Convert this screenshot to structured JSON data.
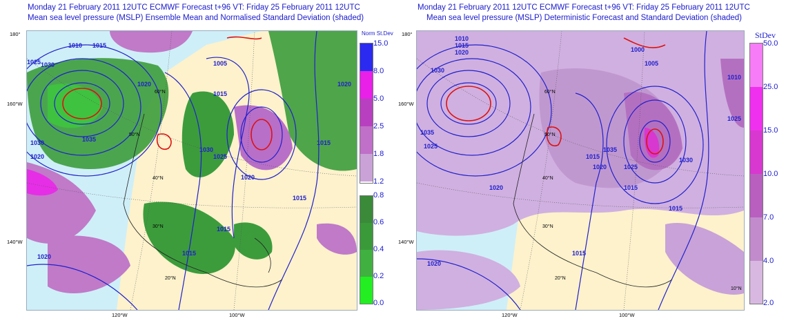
{
  "left": {
    "title_line1": "Monday 21 February 2011 12UTC ECMWF Forecast t+96  VT: Friday 25 February 2011 12UTC",
    "title_line2": "Mean sea level pressure (MSLP) Ensemble Mean and Normalised Standard Deviation (shaded)",
    "colorbar_title": "Norm St.Dev",
    "colorbar_colors_top": [
      "#2a2af0",
      "#e820e8",
      "#b840c0",
      "#c070c8",
      "#caa2d8",
      "#ffffff"
    ],
    "colorbar_colors_bottom": [
      "#3a8a3a",
      "#3a9a3a",
      "#40b040",
      "#30cc30",
      "#22ee22"
    ],
    "colorbar_labels": [
      "15.0",
      "8.0",
      "5.0",
      "2.5",
      "1.8",
      "1.2",
      "0.8",
      "0.6",
      "0.4",
      "0.2",
      "0.0"
    ],
    "isobar_labels": [
      "1010",
      "1015",
      "1025",
      "1030",
      "1020",
      "1005",
      "1015",
      "1020",
      "1035",
      "1030",
      "1020",
      "1030",
      "1025",
      "1015",
      "1020",
      "1015",
      "1015",
      "1020",
      "1015"
    ],
    "lat_labels": [
      "180°",
      "160°W",
      "140°W"
    ],
    "grid_labels": [
      "50°N",
      "40°N",
      "30°N",
      "20°N",
      "60°N"
    ],
    "lon_labels": [
      "120°W",
      "100°W"
    ]
  },
  "right": {
    "title_line1": "Monday 21 February 2011 12UTC ECMWF Forecast t+96  VT: Friday 25 February 2011 12UTC",
    "title_line2": "Mean sea level pressure (MSLP) Deterministic Forecast and Standard Deviation (shaded)",
    "colorbar_title": "StDev",
    "colorbar_colors": [
      "#f77cf7",
      "#f030ef",
      "#d838d0",
      "#b85fc0",
      "#c28ccc",
      "#d8b8e0"
    ],
    "colorbar_labels": [
      "50.0",
      "25.0",
      "15.0",
      "10.0",
      "7.0",
      "4.0",
      "2.0"
    ],
    "isobar_labels": [
      "1010",
      "1015",
      "1020",
      "1000",
      "1005",
      "1030",
      "1035",
      "1025",
      "1015",
      "1020",
      "1010",
      "1030",
      "1035",
      "1025",
      "1020",
      "1015",
      "1015",
      "1020",
      "1015",
      "1025"
    ],
    "lat_labels": [
      "180°",
      "160°W",
      "140°W"
    ],
    "grid_labels": [
      "50°N",
      "40°N",
      "30°N",
      "20°N",
      "60°N",
      "10°N"
    ],
    "lon_labels": [
      "120°W",
      "100°W"
    ]
  }
}
